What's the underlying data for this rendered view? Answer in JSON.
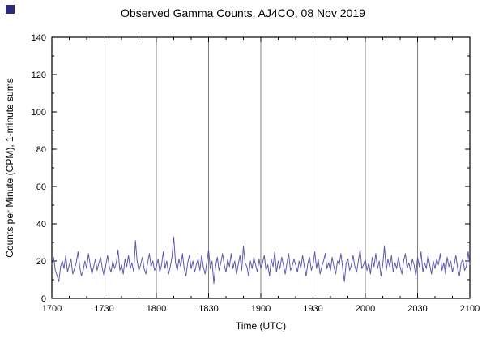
{
  "colors": {
    "grid": "#808080",
    "axis": "#000000",
    "background": "#ffffff"
  },
  "chart_data": {
    "type": "line",
    "title": "Observed Gamma Counts, AJ4CO, 08 Nov 2019",
    "xlabel": "Time (UTC)",
    "ylabel": "Counts per Minute (CPM), 1-minute sums",
    "xlim": [
      0,
      240
    ],
    "ylim": [
      0,
      140
    ],
    "x_tick_labels": [
      "1700",
      "1730",
      "1800",
      "1830",
      "1900",
      "1930",
      "2000",
      "2030",
      "2100"
    ],
    "y_tick_labels": [
      0,
      20,
      40,
      60,
      80,
      100,
      120,
      140
    ],
    "x_minor_step_minutes": 10,
    "y_minor_step": 10,
    "grid": "vertical-only",
    "legend": "none",
    "line_color": "#5a5aad",
    "series_name": "Gamma counts (CPM, 1-minute sums)",
    "values": [
      18,
      22,
      15,
      12,
      9,
      17,
      20,
      16,
      23,
      14,
      18,
      21,
      13,
      16,
      19,
      25,
      17,
      12,
      15,
      20,
      16,
      24,
      18,
      13,
      17,
      21,
      15,
      19,
      22,
      16,
      12,
      18,
      23,
      17,
      14,
      20,
      16,
      19,
      26,
      15,
      18,
      13,
      21,
      17,
      23,
      16,
      19,
      14,
      31,
      20,
      15,
      18,
      22,
      16,
      13,
      19,
      24,
      17,
      20,
      15,
      17,
      21,
      14,
      18,
      25,
      16,
      20,
      13,
      17,
      22,
      33,
      19,
      15,
      21,
      17,
      24,
      16,
      12,
      19,
      23,
      16,
      20,
      14,
      18,
      21,
      15,
      23,
      17,
      13,
      19,
      26,
      16,
      20,
      8,
      17,
      22,
      15,
      19,
      24,
      18,
      14,
      21,
      17,
      24,
      16,
      20,
      13,
      18,
      23,
      15,
      28,
      19,
      17,
      12,
      20,
      16,
      22,
      18,
      14,
      21,
      16,
      19,
      23,
      15,
      18,
      12,
      21,
      17,
      25,
      14,
      20,
      16,
      22,
      18,
      13,
      19,
      24,
      15,
      17,
      21,
      18,
      14,
      20,
      16,
      23,
      17,
      12,
      19,
      22,
      15,
      18,
      25,
      16,
      21,
      13,
      17,
      20,
      24,
      16,
      19,
      15,
      22,
      17,
      13,
      20,
      18,
      24,
      16,
      9,
      19,
      21,
      15,
      18,
      23,
      17,
      14,
      20,
      26,
      16,
      18,
      21,
      15,
      19,
      13,
      22,
      17,
      24,
      16,
      20,
      12,
      18,
      28,
      15,
      21,
      17,
      23,
      14,
      19,
      16,
      22,
      17,
      13,
      20,
      24,
      16,
      19,
      15,
      21,
      18,
      12,
      22,
      17,
      25,
      14,
      19,
      16,
      23,
      18,
      13,
      20,
      16,
      21,
      18,
      24,
      15,
      19,
      13,
      22,
      17,
      20,
      14,
      18,
      23,
      16,
      12,
      19,
      21,
      15,
      17,
      25,
      18
    ]
  }
}
